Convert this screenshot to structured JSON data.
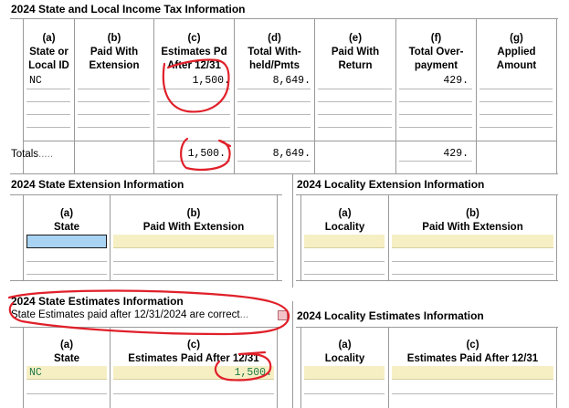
{
  "income_tax": {
    "title": "2024 State and Local Income Tax Information",
    "columns": [
      {
        "letter": "(a)",
        "l1": "State or",
        "l2": "Local ID"
      },
      {
        "letter": "(b)",
        "l1": "Paid With",
        "l2": "Extension"
      },
      {
        "letter": "(c)",
        "l1": "Estimates Pd",
        "l2": "After 12/31"
      },
      {
        "letter": "(d)",
        "l1": "Total With-",
        "l2": "held/Pmts"
      },
      {
        "letter": "(e)",
        "l1": "Paid With",
        "l2": "Return"
      },
      {
        "letter": "(f)",
        "l1": "Total Over-",
        "l2": "payment"
      },
      {
        "letter": "(g)",
        "l1": "Applied",
        "l2": "Amount"
      }
    ],
    "row1": {
      "state": "NC",
      "paid_with_extension": "",
      "estimates_pd_after": "1,500.",
      "total_withheld": "8,649.",
      "paid_with_return": "",
      "total_overpayment": "429.",
      "applied_amount": ""
    },
    "totals": {
      "label": "Totals",
      "dots": ".....",
      "estimates_pd_after": "1,500.",
      "total_withheld": "8,649.",
      "total_overpayment": "429."
    }
  },
  "state_extension": {
    "title": "2024 State Extension Information",
    "col_a": {
      "letter": "(a)",
      "label": "State"
    },
    "col_b": {
      "letter": "(b)",
      "label": "Paid With Extension"
    }
  },
  "locality_extension": {
    "title": "2024 Locality Extension Information",
    "col_a": {
      "letter": "(a)",
      "label": "Locality"
    },
    "col_b": {
      "letter": "(b)",
      "label": "Paid With Extension"
    }
  },
  "state_estimates": {
    "title": "2024 State Estimates Information",
    "confirm_text": "State Estimates paid after 12/31/2024 are correct",
    "confirm_dots": "...",
    "col_a": {
      "letter": "(a)",
      "label": "State"
    },
    "col_c": {
      "letter": "(c)",
      "label": "Estimates Paid After 12/31"
    },
    "row1": {
      "state": "NC",
      "amount": "1,500."
    }
  },
  "locality_estimates": {
    "title": "2024 Locality Estimates Information",
    "col_a": {
      "letter": "(a)",
      "label": "Locality"
    },
    "col_c": {
      "letter": "(c)",
      "label": "Estimates Paid After 12/31"
    }
  },
  "colors": {
    "input_yellow": "#f6efc4",
    "selected_blue": "#a9d3f2",
    "annotation_red": "#e0202a",
    "checkbox_pink": "#f3c3c8"
  }
}
